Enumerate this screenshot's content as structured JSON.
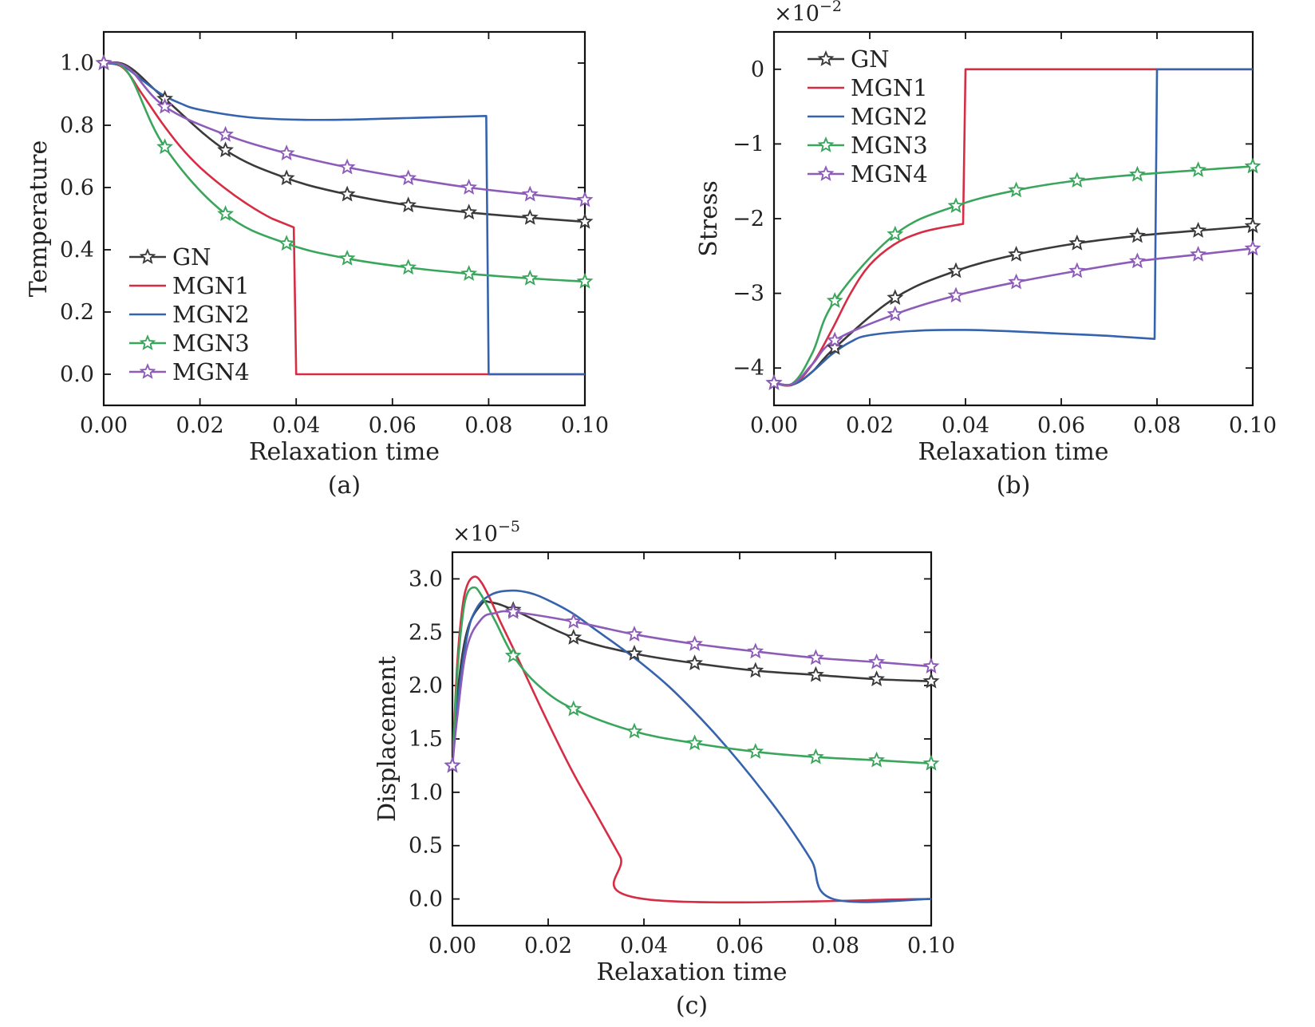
{
  "chart_data": [
    {
      "id": "a",
      "type": "line",
      "panel_label": "(a)",
      "xlabel": "Relaxation time",
      "ylabel": "Temperature",
      "xlim": [
        0,
        0.1
      ],
      "ylim": [
        -0.1,
        1.1
      ],
      "xticks": [
        "0.00",
        "0.02",
        "0.04",
        "0.06",
        "0.08",
        "0.10"
      ],
      "yticks": [
        "0.0",
        "0.2",
        "0.4",
        "0.6",
        "0.8",
        "1.0"
      ],
      "multiplier": "",
      "grid": false,
      "legend_position": "bottom-left",
      "series": [
        {
          "name": "GN",
          "color": "#3a3a3a",
          "marker": "star",
          "points": [
            [
              0,
              1.0
            ],
            [
              0.005,
              0.99
            ],
            [
              0.0127,
              0.885
            ],
            [
              0.0253,
              0.72
            ],
            [
              0.038,
              0.63
            ],
            [
              0.0506,
              0.578
            ],
            [
              0.0633,
              0.543
            ],
            [
              0.0759,
              0.52
            ],
            [
              0.0886,
              0.503
            ],
            [
              0.1,
              0.49
            ]
          ]
        },
        {
          "name": "MGN1",
          "color": "#d62d45",
          "marker": "none",
          "points": [
            [
              0,
              1.0
            ],
            [
              0.004,
              0.985
            ],
            [
              0.008,
              0.9
            ],
            [
              0.012,
              0.81
            ],
            [
              0.016,
              0.73
            ],
            [
              0.02,
              0.665
            ],
            [
              0.025,
              0.6
            ],
            [
              0.03,
              0.545
            ],
            [
              0.035,
              0.5
            ],
            [
              0.0395,
              0.472
            ],
            [
              0.04,
              0.0
            ],
            [
              0.1,
              0.0
            ]
          ]
        },
        {
          "name": "MGN2",
          "color": "#3563ad",
          "marker": "none",
          "points": [
            [
              0,
              1.0
            ],
            [
              0.004,
              0.99
            ],
            [
              0.008,
              0.945
            ],
            [
              0.012,
              0.9
            ],
            [
              0.016,
              0.87
            ],
            [
              0.02,
              0.85
            ],
            [
              0.03,
              0.826
            ],
            [
              0.04,
              0.818
            ],
            [
              0.05,
              0.818
            ],
            [
              0.06,
              0.822
            ],
            [
              0.07,
              0.826
            ],
            [
              0.0795,
              0.83
            ],
            [
              0.08,
              0.0
            ],
            [
              0.1,
              0.0
            ]
          ]
        },
        {
          "name": "MGN3",
          "color": "#3aa65c",
          "marker": "star",
          "points": [
            [
              0,
              1.0
            ],
            [
              0.005,
              0.97
            ],
            [
              0.0127,
              0.73
            ],
            [
              0.0253,
              0.515
            ],
            [
              0.038,
              0.42
            ],
            [
              0.0506,
              0.372
            ],
            [
              0.0633,
              0.343
            ],
            [
              0.0759,
              0.323
            ],
            [
              0.0886,
              0.308
            ],
            [
              0.1,
              0.298
            ]
          ]
        },
        {
          "name": "MGN4",
          "color": "#8d5bb8",
          "marker": "star",
          "points": [
            [
              0,
              1.0
            ],
            [
              0.005,
              0.985
            ],
            [
              0.0127,
              0.86
            ],
            [
              0.0253,
              0.77
            ],
            [
              0.038,
              0.71
            ],
            [
              0.0506,
              0.665
            ],
            [
              0.0633,
              0.63
            ],
            [
              0.0759,
              0.6
            ],
            [
              0.0886,
              0.578
            ],
            [
              0.1,
              0.56
            ]
          ]
        }
      ]
    },
    {
      "id": "b",
      "type": "line",
      "panel_label": "(b)",
      "xlabel": "Relaxation time",
      "ylabel": "Stress",
      "xlim": [
        0,
        0.1
      ],
      "ylim": [
        -4.5,
        0.5
      ],
      "xticks": [
        "0.00",
        "0.02",
        "0.04",
        "0.06",
        "0.08",
        "0.10"
      ],
      "yticks": [
        "0",
        "−1",
        "−2",
        "−3",
        "−4"
      ],
      "multiplier": "×10",
      "multiplier_exp": "−2",
      "grid": false,
      "legend_position": "top-left",
      "series": [
        {
          "name": "GN",
          "color": "#3a3a3a",
          "marker": "star",
          "points": [
            [
              0,
              -4.2
            ],
            [
              0.004,
              -4.22
            ],
            [
              0.008,
              -4.05
            ],
            [
              0.0127,
              -3.73
            ],
            [
              0.0253,
              -3.06
            ],
            [
              0.038,
              -2.7
            ],
            [
              0.0506,
              -2.48
            ],
            [
              0.0633,
              -2.33
            ],
            [
              0.0759,
              -2.23
            ],
            [
              0.0886,
              -2.16
            ],
            [
              0.1,
              -2.1
            ]
          ]
        },
        {
          "name": "MGN1",
          "color": "#d62d45",
          "marker": "none",
          "points": [
            [
              0,
              -4.2
            ],
            [
              0.004,
              -4.22
            ],
            [
              0.008,
              -3.95
            ],
            [
              0.012,
              -3.5
            ],
            [
              0.016,
              -3.0
            ],
            [
              0.02,
              -2.62
            ],
            [
              0.025,
              -2.35
            ],
            [
              0.03,
              -2.2
            ],
            [
              0.035,
              -2.12
            ],
            [
              0.0395,
              -2.07
            ],
            [
              0.04,
              0.0
            ],
            [
              0.1,
              0.0
            ]
          ]
        },
        {
          "name": "MGN2",
          "color": "#3563ad",
          "marker": "none",
          "points": [
            [
              0,
              -4.2
            ],
            [
              0.004,
              -4.22
            ],
            [
              0.008,
              -4.05
            ],
            [
              0.012,
              -3.82
            ],
            [
              0.016,
              -3.65
            ],
            [
              0.02,
              -3.56
            ],
            [
              0.03,
              -3.5
            ],
            [
              0.04,
              -3.49
            ],
            [
              0.05,
              -3.51
            ],
            [
              0.06,
              -3.54
            ],
            [
              0.07,
              -3.57
            ],
            [
              0.0795,
              -3.61
            ],
            [
              0.08,
              0.0
            ],
            [
              0.1,
              0.0
            ]
          ]
        },
        {
          "name": "MGN3",
          "color": "#3aa65c",
          "marker": "star",
          "points": [
            [
              0,
              -4.2
            ],
            [
              0.004,
              -4.2
            ],
            [
              0.008,
              -3.8
            ],
            [
              0.0127,
              -3.1
            ],
            [
              0.0253,
              -2.21
            ],
            [
              0.038,
              -1.83
            ],
            [
              0.0506,
              -1.62
            ],
            [
              0.0633,
              -1.49
            ],
            [
              0.0759,
              -1.41
            ],
            [
              0.0886,
              -1.35
            ],
            [
              0.1,
              -1.3
            ]
          ]
        },
        {
          "name": "MGN4",
          "color": "#8d5bb8",
          "marker": "star",
          "points": [
            [
              0,
              -4.2
            ],
            [
              0.004,
              -4.21
            ],
            [
              0.008,
              -3.95
            ],
            [
              0.0127,
              -3.63
            ],
            [
              0.0253,
              -3.28
            ],
            [
              0.038,
              -3.03
            ],
            [
              0.0506,
              -2.85
            ],
            [
              0.0633,
              -2.7
            ],
            [
              0.0759,
              -2.57
            ],
            [
              0.0886,
              -2.48
            ],
            [
              0.1,
              -2.4
            ]
          ]
        }
      ]
    },
    {
      "id": "c",
      "type": "line",
      "panel_label": "(c)",
      "xlabel": "Relaxation time",
      "ylabel": "Displacement",
      "xlim": [
        0,
        0.1
      ],
      "ylim": [
        -0.25,
        3.25
      ],
      "xticks": [
        "0.00",
        "0.02",
        "0.04",
        "0.06",
        "0.08",
        "0.10"
      ],
      "yticks": [
        "0.0",
        "0.5",
        "1.0",
        "1.5",
        "2.0",
        "2.5",
        "3.0"
      ],
      "multiplier": "×10",
      "multiplier_exp": "−5",
      "grid": false,
      "legend_position": "none",
      "series": [
        {
          "name": "GN",
          "color": "#3a3a3a",
          "marker": "star",
          "points": [
            [
              0,
              1.25
            ],
            [
              0.001,
              1.9
            ],
            [
              0.003,
              2.5
            ],
            [
              0.006,
              2.76
            ],
            [
              0.008,
              2.78
            ],
            [
              0.0127,
              2.71
            ],
            [
              0.0253,
              2.45
            ],
            [
              0.038,
              2.3
            ],
            [
              0.0506,
              2.21
            ],
            [
              0.0633,
              2.14
            ],
            [
              0.0759,
              2.1
            ],
            [
              0.0886,
              2.06
            ],
            [
              0.1,
              2.04
            ]
          ]
        },
        {
          "name": "MGN1",
          "color": "#d62d45",
          "marker": "none",
          "points": [
            [
              0,
              1.25
            ],
            [
              0.001,
              2.2
            ],
            [
              0.002,
              2.7
            ],
            [
              0.003,
              2.93
            ],
            [
              0.0045,
              3.02
            ],
            [
              0.006,
              2.97
            ],
            [
              0.008,
              2.8
            ],
            [
              0.01,
              2.6
            ],
            [
              0.013,
              2.32
            ],
            [
              0.016,
              2.03
            ],
            [
              0.02,
              1.65
            ],
            [
              0.025,
              1.2
            ],
            [
              0.03,
              0.8
            ],
            [
              0.035,
              0.4
            ],
            [
              0.04,
              0.0
            ],
            [
              0.1,
              0.0
            ]
          ]
        },
        {
          "name": "MGN2",
          "color": "#3563ad",
          "marker": "none",
          "points": [
            [
              0,
              1.25
            ],
            [
              0.001,
              1.8
            ],
            [
              0.003,
              2.45
            ],
            [
              0.005,
              2.72
            ],
            [
              0.008,
              2.85
            ],
            [
              0.012,
              2.89
            ],
            [
              0.016,
              2.87
            ],
            [
              0.02,
              2.8
            ],
            [
              0.025,
              2.68
            ],
            [
              0.03,
              2.52
            ],
            [
              0.035,
              2.36
            ],
            [
              0.04,
              2.19
            ],
            [
              0.045,
              2.0
            ],
            [
              0.05,
              1.78
            ],
            [
              0.055,
              1.54
            ],
            [
              0.06,
              1.28
            ],
            [
              0.065,
              1.0
            ],
            [
              0.07,
              0.7
            ],
            [
              0.075,
              0.36
            ],
            [
              0.0795,
              0.0
            ],
            [
              0.1,
              0.0
            ]
          ]
        },
        {
          "name": "MGN3",
          "color": "#3aa65c",
          "marker": "star",
          "points": [
            [
              0,
              1.25
            ],
            [
              0.001,
              2.1
            ],
            [
              0.002,
              2.6
            ],
            [
              0.003,
              2.85
            ],
            [
              0.0045,
              2.92
            ],
            [
              0.006,
              2.85
            ],
            [
              0.009,
              2.6
            ],
            [
              0.0127,
              2.28
            ],
            [
              0.018,
              2.0
            ],
            [
              0.0253,
              1.78
            ],
            [
              0.038,
              1.57
            ],
            [
              0.0506,
              1.46
            ],
            [
              0.0633,
              1.38
            ],
            [
              0.0759,
              1.33
            ],
            [
              0.0886,
              1.3
            ],
            [
              0.1,
              1.27
            ]
          ]
        },
        {
          "name": "MGN4",
          "color": "#8d5bb8",
          "marker": "star",
          "points": [
            [
              0,
              1.25
            ],
            [
              0.001,
              1.7
            ],
            [
              0.003,
              2.35
            ],
            [
              0.006,
              2.62
            ],
            [
              0.009,
              2.68
            ],
            [
              0.0127,
              2.69
            ],
            [
              0.0253,
              2.6
            ],
            [
              0.038,
              2.48
            ],
            [
              0.0506,
              2.39
            ],
            [
              0.0633,
              2.32
            ],
            [
              0.0759,
              2.26
            ],
            [
              0.0886,
              2.22
            ],
            [
              0.1,
              2.18
            ]
          ]
        }
      ]
    }
  ]
}
